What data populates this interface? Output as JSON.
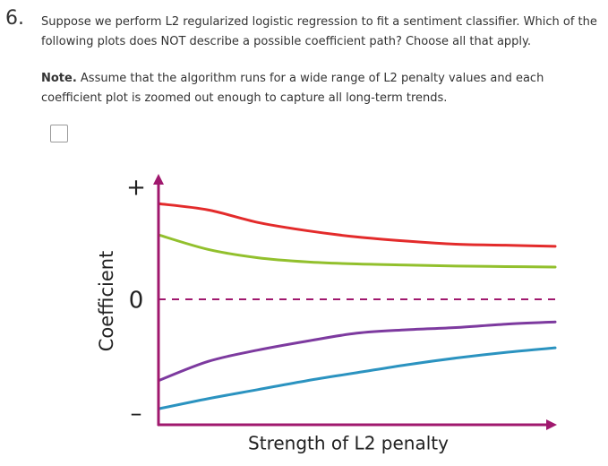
{
  "question": {
    "number": "6.",
    "text": "Suppose we perform L2 regularized logistic regression to fit a sentiment classifier. Which of the following plots does NOT describe a possible coefficient path? Choose all that apply.",
    "note_label": "Note.",
    "note_text": " Assume that the algorithm runs for a wide range of L2 penalty values and each coefficient plot is zoomed out enough to capture all long-term trends."
  },
  "option": {
    "checked": false
  },
  "chart_data": {
    "type": "line",
    "xlabel": "Strength of L2 penalty",
    "ylabel": "Coefficient",
    "y_tick_labels": [
      "+",
      "0",
      "–"
    ],
    "zero_line": "dashed",
    "colors": {
      "axis": "#a0186e",
      "zero_line": "#a0186e"
    },
    "series": [
      {
        "color": "#e32b2b",
        "values": [
          0.92,
          0.86,
          0.74,
          0.66,
          0.6,
          0.56,
          0.53,
          0.52,
          0.51
        ]
      },
      {
        "color": "#92c02d",
        "values": [
          0.62,
          0.48,
          0.4,
          0.36,
          0.34,
          0.33,
          0.32,
          0.315,
          0.31
        ]
      },
      {
        "color": "#7d3a9f",
        "values": [
          -0.72,
          -0.55,
          -0.45,
          -0.37,
          -0.3,
          -0.27,
          -0.25,
          -0.22,
          -0.2
        ]
      },
      {
        "color": "#2b93c0",
        "values": [
          -0.97,
          -0.88,
          -0.8,
          -0.72,
          -0.65,
          -0.58,
          -0.52,
          -0.47,
          -0.43
        ]
      }
    ]
  }
}
